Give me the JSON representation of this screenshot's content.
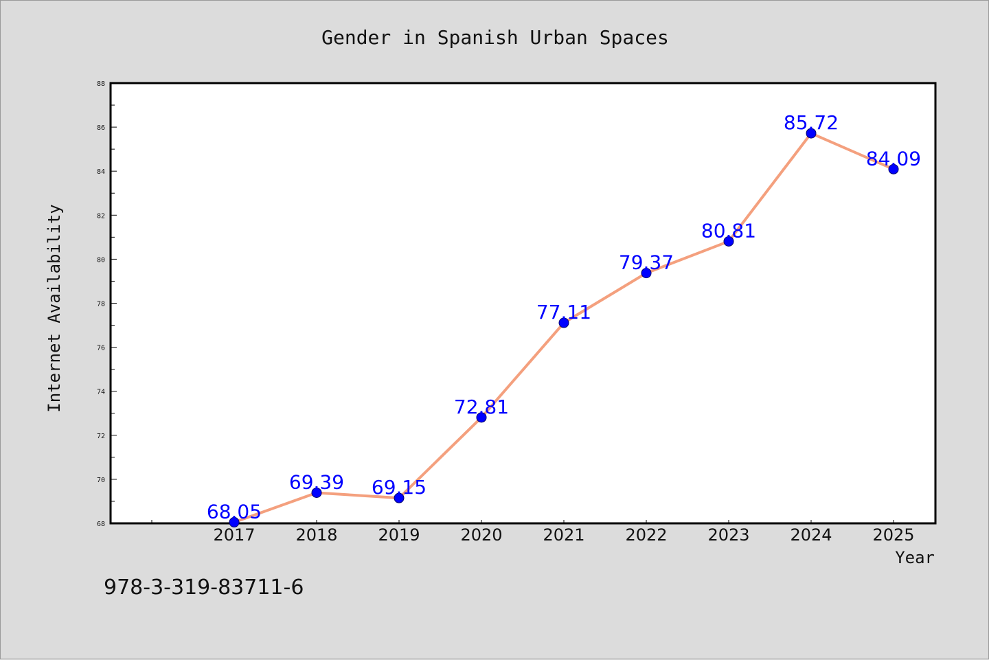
{
  "chart_data": {
    "type": "line",
    "title": "Gender in Spanish Urban Spaces",
    "xlabel": "Year",
    "ylabel": "Internet Availability",
    "categories": [
      "2017",
      "2018",
      "2019",
      "2020",
      "2021",
      "2022",
      "2023",
      "2024",
      "2025"
    ],
    "series": [
      {
        "values": [
          68.05,
          69.39,
          69.15,
          72.81,
          77.11,
          79.37,
          80.81,
          85.72,
          84.09
        ],
        "labels": [
          "68.05",
          "69.39",
          "69.15",
          "72.81",
          "77.11",
          "79.37",
          "80.81",
          "85.72",
          "84.09"
        ],
        "line_color": "#f4a07e",
        "marker_color": "#0000ff",
        "label_color": "#0000ff"
      }
    ],
    "ylim": [
      68,
      88
    ],
    "yticks": [
      "68",
      "70",
      "72",
      "74",
      "76",
      "78",
      "80",
      "82",
      "84",
      "86",
      "88"
    ],
    "x_start_category_index": 0,
    "grid": false,
    "legend": "none"
  },
  "annotation": "978-3-319-83711-6"
}
